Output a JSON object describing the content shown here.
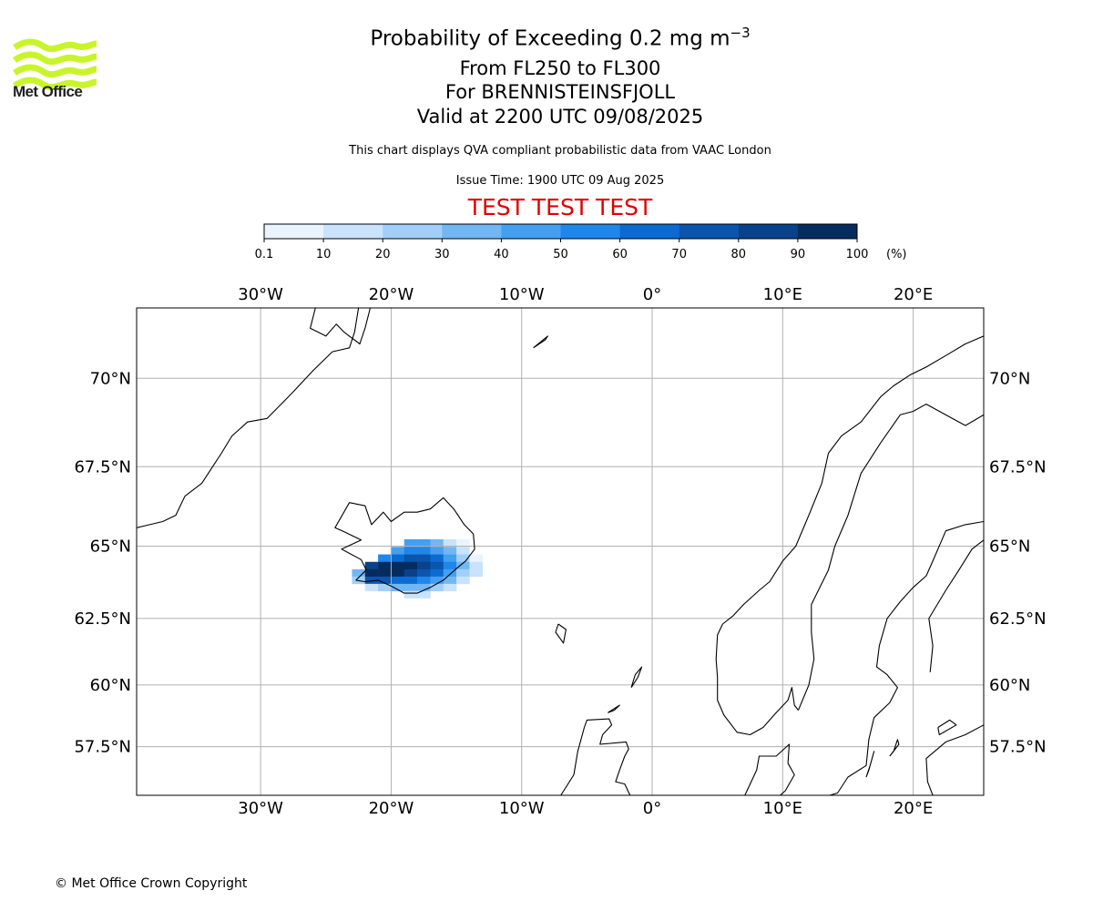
{
  "header": {
    "title_main": "Probability of Exceeding 0.2 mg m",
    "title_sup": "−3",
    "level_range": "From FL250 to FL300",
    "volcano": "For BRENNISTEINSFJOLL",
    "valid_time": "Valid at 2200 UTC 09/08/2025",
    "disclaimer": "This chart displays QVA compliant probabilistic data from VAAC London",
    "issue_time": "Issue Time: 1900 UTC 09 Aug 2025",
    "test_banner": "TEST TEST TEST"
  },
  "logo": {
    "wordmark": "Met Office",
    "color": "#c8f52a"
  },
  "colorbar": {
    "ticks": [
      "0.1",
      "10",
      "20",
      "30",
      "40",
      "50",
      "60",
      "70",
      "80",
      "90",
      "100"
    ],
    "unit": "(%)",
    "colors": [
      "#eaf4fe",
      "#c8e3fb",
      "#a2cff8",
      "#72b6f4",
      "#449ff1",
      "#1f86eb",
      "#0c6bd0",
      "#0a55ad",
      "#08428a",
      "#052c5e"
    ]
  },
  "map": {
    "lon_range": [
      -39.5,
      25.4
    ],
    "lat_range": [
      55.4,
      71.8
    ],
    "x_ticks": [
      {
        "lon": -30,
        "label": "30°W"
      },
      {
        "lon": -20,
        "label": "20°W"
      },
      {
        "lon": -10,
        "label": "10°W"
      },
      {
        "lon": 0,
        "label": "0°"
      },
      {
        "lon": 10,
        "label": "10°E"
      },
      {
        "lon": 20,
        "label": "20°E"
      }
    ],
    "y_ticks": [
      {
        "lat": 70,
        "label": "70°N"
      },
      {
        "lat": 67.5,
        "label": "67.5°N"
      },
      {
        "lat": 65,
        "label": "65°N"
      },
      {
        "lat": 62.5,
        "label": "62.5°N"
      },
      {
        "lat": 60,
        "label": "60°N"
      },
      {
        "lat": 57.5,
        "label": "57.5°N"
      }
    ],
    "grid": true,
    "probability_cells": [
      {
        "lon": -18.5,
        "lat": 65.1,
        "p": 45
      },
      {
        "lon": -17.5,
        "lat": 65.1,
        "p": 45
      },
      {
        "lon": -16.5,
        "lat": 65.1,
        "p": 30
      },
      {
        "lon": -15.5,
        "lat": 65.1,
        "p": 15
      },
      {
        "lon": -14.5,
        "lat": 65.1,
        "p": 5
      },
      {
        "lon": -19.5,
        "lat": 64.85,
        "p": 45
      },
      {
        "lon": -18.5,
        "lat": 64.85,
        "p": 55
      },
      {
        "lon": -17.5,
        "lat": 64.85,
        "p": 55
      },
      {
        "lon": -16.5,
        "lat": 64.85,
        "p": 45
      },
      {
        "lon": -15.5,
        "lat": 64.85,
        "p": 35
      },
      {
        "lon": -14.5,
        "lat": 64.85,
        "p": 15
      },
      {
        "lon": -20.5,
        "lat": 64.6,
        "p": 55
      },
      {
        "lon": -19.5,
        "lat": 64.6,
        "p": 65
      },
      {
        "lon": -18.5,
        "lat": 64.6,
        "p": 75
      },
      {
        "lon": -17.5,
        "lat": 64.6,
        "p": 75
      },
      {
        "lon": -16.5,
        "lat": 64.6,
        "p": 65
      },
      {
        "lon": -15.5,
        "lat": 64.6,
        "p": 45
      },
      {
        "lon": -14.5,
        "lat": 64.6,
        "p": 25
      },
      {
        "lon": -13.5,
        "lat": 64.6,
        "p": 8
      },
      {
        "lon": -21.5,
        "lat": 64.35,
        "p": 85
      },
      {
        "lon": -20.5,
        "lat": 64.35,
        "p": 92
      },
      {
        "lon": -19.5,
        "lat": 64.35,
        "p": 95
      },
      {
        "lon": -18.5,
        "lat": 64.35,
        "p": 95
      },
      {
        "lon": -17.5,
        "lat": 64.35,
        "p": 85
      },
      {
        "lon": -16.5,
        "lat": 64.35,
        "p": 72
      },
      {
        "lon": -15.5,
        "lat": 64.35,
        "p": 55
      },
      {
        "lon": -14.5,
        "lat": 64.35,
        "p": 35
      },
      {
        "lon": -13.5,
        "lat": 64.35,
        "p": 12
      },
      {
        "lon": -22.5,
        "lat": 64.1,
        "p": 30
      },
      {
        "lon": -21.5,
        "lat": 64.1,
        "p": 95
      },
      {
        "lon": -20.5,
        "lat": 64.1,
        "p": 95
      },
      {
        "lon": -19.5,
        "lat": 64.1,
        "p": 92
      },
      {
        "lon": -18.5,
        "lat": 64.1,
        "p": 85
      },
      {
        "lon": -17.5,
        "lat": 64.1,
        "p": 75
      },
      {
        "lon": -16.5,
        "lat": 64.1,
        "p": 62
      },
      {
        "lon": -15.5,
        "lat": 64.1,
        "p": 48
      },
      {
        "lon": -14.5,
        "lat": 64.1,
        "p": 28
      },
      {
        "lon": -13.5,
        "lat": 64.1,
        "p": 10
      },
      {
        "lon": -22.5,
        "lat": 63.85,
        "p": 20
      },
      {
        "lon": -21.5,
        "lat": 63.85,
        "p": 75
      },
      {
        "lon": -20.5,
        "lat": 63.85,
        "p": 72
      },
      {
        "lon": -19.5,
        "lat": 63.85,
        "p": 68
      },
      {
        "lon": -18.5,
        "lat": 63.85,
        "p": 62
      },
      {
        "lon": -17.5,
        "lat": 63.85,
        "p": 55
      },
      {
        "lon": -16.5,
        "lat": 63.85,
        "p": 45
      },
      {
        "lon": -15.5,
        "lat": 63.85,
        "p": 30
      },
      {
        "lon": -14.5,
        "lat": 63.85,
        "p": 15
      },
      {
        "lon": -21.5,
        "lat": 63.6,
        "p": 15
      },
      {
        "lon": -20.5,
        "lat": 63.6,
        "p": 25
      },
      {
        "lon": -19.5,
        "lat": 63.6,
        "p": 30
      },
      {
        "lon": -18.5,
        "lat": 63.6,
        "p": 35
      },
      {
        "lon": -17.5,
        "lat": 63.6,
        "p": 30
      },
      {
        "lon": -16.5,
        "lat": 63.6,
        "p": 20
      },
      {
        "lon": -15.5,
        "lat": 63.6,
        "p": 10
      },
      {
        "lon": -18.5,
        "lat": 63.35,
        "p": 15
      },
      {
        "lon": -17.5,
        "lat": 63.35,
        "p": 12
      }
    ],
    "coastlines": [
      {
        "name": "greenland-coast",
        "points": [
          [
            -39.5,
            65.6
          ],
          [
            -38.5,
            65.7
          ],
          [
            -37.5,
            65.8
          ],
          [
            -36.5,
            66.0
          ],
          [
            -35.8,
            66.6
          ],
          [
            -34.5,
            67.0
          ],
          [
            -33.0,
            67.9
          ],
          [
            -32.2,
            68.4
          ],
          [
            -31.0,
            68.8
          ],
          [
            -29.5,
            68.9
          ],
          [
            -27.6,
            69.6
          ],
          [
            -26.0,
            70.2
          ],
          [
            -24.5,
            70.7
          ],
          [
            -23.2,
            70.8
          ],
          [
            -22.8,
            71.2
          ],
          [
            -22.5,
            71.8
          ]
        ]
      },
      {
        "name": "greenland-scoresby",
        "points": [
          [
            -25.8,
            71.8
          ],
          [
            -26.2,
            71.3
          ],
          [
            -25.0,
            71.1
          ],
          [
            -24.2,
            71.4
          ],
          [
            -23.6,
            71.2
          ],
          [
            -22.4,
            70.9
          ],
          [
            -22.0,
            71.3
          ],
          [
            -21.6,
            71.8
          ]
        ]
      },
      {
        "name": "iceland",
        "points": [
          [
            -22.7,
            63.85
          ],
          [
            -22.0,
            63.8
          ],
          [
            -21.0,
            63.85
          ],
          [
            -20.0,
            63.65
          ],
          [
            -19.0,
            63.4
          ],
          [
            -18.0,
            63.4
          ],
          [
            -17.0,
            63.6
          ],
          [
            -16.0,
            63.85
          ],
          [
            -15.0,
            64.25
          ],
          [
            -14.3,
            64.5
          ],
          [
            -13.6,
            64.9
          ],
          [
            -13.7,
            65.4
          ],
          [
            -14.4,
            65.7
          ],
          [
            -15.2,
            66.2
          ],
          [
            -16.0,
            66.55
          ],
          [
            -17.0,
            66.2
          ],
          [
            -18.0,
            66.1
          ],
          [
            -19.0,
            66.1
          ],
          [
            -20.0,
            65.8
          ],
          [
            -20.6,
            66.1
          ],
          [
            -21.5,
            65.7
          ],
          [
            -22.0,
            66.3
          ],
          [
            -23.2,
            66.4
          ],
          [
            -24.3,
            65.6
          ],
          [
            -23.5,
            65.45
          ],
          [
            -22.3,
            65.2
          ],
          [
            -23.8,
            64.9
          ],
          [
            -22.3,
            64.55
          ],
          [
            -21.9,
            64.2
          ],
          [
            -22.7,
            63.85
          ]
        ]
      },
      {
        "name": "jan-mayen",
        "points": [
          [
            -9.1,
            70.8
          ],
          [
            -8.0,
            71.1
          ],
          [
            -8.2,
            71.0
          ],
          [
            -9.1,
            70.8
          ]
        ]
      },
      {
        "name": "faroe-islands",
        "points": [
          [
            -7.2,
            62.3
          ],
          [
            -6.6,
            62.1
          ],
          [
            -6.8,
            61.6
          ],
          [
            -7.4,
            62.0
          ],
          [
            -7.2,
            62.3
          ]
        ]
      },
      {
        "name": "shetland",
        "points": [
          [
            -1.6,
            59.9
          ],
          [
            -1.1,
            60.3
          ],
          [
            -0.8,
            60.7
          ],
          [
            -1.3,
            60.4
          ],
          [
            -1.6,
            59.9
          ]
        ]
      },
      {
        "name": "orkney",
        "points": [
          [
            -3.4,
            58.9
          ],
          [
            -2.5,
            59.2
          ],
          [
            -2.9,
            59.0
          ],
          [
            -3.4,
            58.9
          ]
        ]
      },
      {
        "name": "scotland-coast",
        "points": [
          [
            -7.0,
            55.4
          ],
          [
            -6.0,
            56.3
          ],
          [
            -5.7,
            57.3
          ],
          [
            -5.2,
            58.3
          ],
          [
            -5.0,
            58.6
          ],
          [
            -3.3,
            58.65
          ],
          [
            -3.1,
            58.4
          ],
          [
            -3.8,
            58.0
          ],
          [
            -4.0,
            57.6
          ],
          [
            -2.0,
            57.7
          ],
          [
            -1.8,
            57.4
          ],
          [
            -2.1,
            57.1
          ],
          [
            -2.5,
            56.5
          ],
          [
            -2.8,
            56.0
          ],
          [
            -2.1,
            55.9
          ],
          [
            -1.7,
            55.4
          ]
        ]
      },
      {
        "name": "norway-coast",
        "points": [
          [
            7.1,
            55.4
          ],
          [
            8.0,
            56.5
          ],
          [
            8.2,
            57.1
          ],
          [
            9.5,
            57.1
          ],
          [
            10.5,
            57.6
          ],
          [
            10.4,
            56.8
          ],
          [
            10.9,
            56.3
          ],
          [
            10.2,
            55.6
          ],
          [
            9.8,
            55.4
          ]
        ]
      },
      {
        "name": "norway-west",
        "points": [
          [
            5.5,
            58.8
          ],
          [
            5.0,
            59.4
          ],
          [
            5.0,
            60.3
          ],
          [
            4.9,
            61.0
          ],
          [
            5.0,
            61.9
          ],
          [
            5.4,
            62.3
          ],
          [
            6.2,
            62.6
          ],
          [
            7.0,
            63.0
          ],
          [
            8.2,
            63.5
          ],
          [
            9.0,
            63.8
          ],
          [
            10.0,
            64.5
          ],
          [
            11.0,
            65.0
          ],
          [
            12.0,
            66.0
          ],
          [
            13.0,
            67.0
          ],
          [
            13.5,
            67.9
          ],
          [
            14.5,
            68.4
          ],
          [
            16.0,
            68.8
          ],
          [
            17.5,
            69.5
          ],
          [
            18.5,
            69.8
          ],
          [
            19.8,
            70.1
          ],
          [
            21.0,
            70.3
          ],
          [
            22.5,
            70.6
          ],
          [
            24.0,
            70.9
          ],
          [
            25.4,
            71.1
          ]
        ]
      },
      {
        "name": "norway-south",
        "points": [
          [
            5.5,
            58.8
          ],
          [
            6.5,
            58.1
          ],
          [
            7.5,
            58.0
          ],
          [
            8.5,
            58.3
          ],
          [
            9.5,
            58.9
          ],
          [
            10.4,
            59.4
          ],
          [
            10.7,
            59.9
          ],
          [
            10.9,
            59.2
          ],
          [
            11.2,
            59.0
          ]
        ]
      },
      {
        "name": "norway-sweden-border",
        "points": [
          [
            11.2,
            59.0
          ],
          [
            12.0,
            60.0
          ],
          [
            12.4,
            61.0
          ],
          [
            12.2,
            62.0
          ],
          [
            12.2,
            63.0
          ],
          [
            13.5,
            64.2
          ],
          [
            14.0,
            65.0
          ],
          [
            15.0,
            66.0
          ],
          [
            16.0,
            67.3
          ],
          [
            17.5,
            68.2
          ],
          [
            19.0,
            69.0
          ],
          [
            20.0,
            69.1
          ],
          [
            21.0,
            69.3
          ],
          [
            22.5,
            69.0
          ],
          [
            24.0,
            68.7
          ],
          [
            25.4,
            69.0
          ]
        ]
      },
      {
        "name": "sweden-baltic-coast",
        "points": [
          [
            25.4,
            65.8
          ],
          [
            24.0,
            65.7
          ],
          [
            22.5,
            65.5
          ],
          [
            21.5,
            64.5
          ],
          [
            21.0,
            64.0
          ],
          [
            20.0,
            63.6
          ],
          [
            19.0,
            63.1
          ],
          [
            18.0,
            62.5
          ],
          [
            17.4,
            61.5
          ],
          [
            17.2,
            60.7
          ],
          [
            18.0,
            60.4
          ],
          [
            18.8,
            59.9
          ],
          [
            18.2,
            59.3
          ],
          [
            17.0,
            58.7
          ],
          [
            16.6,
            57.8
          ],
          [
            16.4,
            56.7
          ],
          [
            15.0,
            56.2
          ],
          [
            14.2,
            55.5
          ],
          [
            13.6,
            55.4
          ]
        ]
      },
      {
        "name": "finland-coast",
        "points": [
          [
            21.3,
            60.5
          ],
          [
            21.5,
            61.5
          ],
          [
            21.2,
            62.5
          ],
          [
            22.5,
            63.5
          ],
          [
            23.5,
            64.2
          ],
          [
            24.5,
            64.9
          ],
          [
            25.4,
            65.2
          ]
        ]
      },
      {
        "name": "gotland",
        "points": [
          [
            18.2,
            57.1
          ],
          [
            18.5,
            57.3
          ],
          [
            18.8,
            57.8
          ],
          [
            18.9,
            57.6
          ],
          [
            18.2,
            57.1
          ]
        ]
      },
      {
        "name": "oland",
        "points": [
          [
            16.4,
            56.2
          ],
          [
            16.7,
            56.7
          ],
          [
            17.0,
            57.3
          ],
          [
            16.6,
            56.5
          ],
          [
            16.4,
            56.2
          ]
        ]
      },
      {
        "name": "estonia-coast",
        "points": [
          [
            21.5,
            55.4
          ],
          [
            21.1,
            56.0
          ],
          [
            21.0,
            57.0
          ],
          [
            22.5,
            57.7
          ],
          [
            24.0,
            58.0
          ],
          [
            25.4,
            58.4
          ]
        ]
      },
      {
        "name": "saaremaa",
        "points": [
          [
            21.9,
            58.3
          ],
          [
            22.8,
            58.6
          ],
          [
            23.3,
            58.4
          ],
          [
            22.0,
            58.0
          ],
          [
            21.9,
            58.3
          ]
        ]
      }
    ]
  },
  "footer": {
    "copyright": "© Met Office Crown Copyright"
  }
}
